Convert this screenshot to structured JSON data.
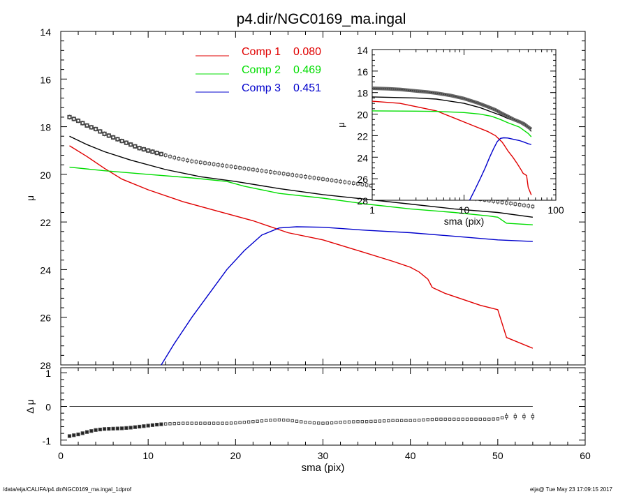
{
  "title": "p4.dir/NGC0169_ma.ingal",
  "footer": {
    "path": "/data/eija/CALIFA/p4.dir/NGC0169_ma.ingal_1dprof",
    "stamp": "eija@  Tue May 23 17:09:15 2017"
  },
  "colors": {
    "comp1": "#e00000",
    "comp2": "#00dd00",
    "comp3": "#0000cc",
    "data": "#555555",
    "total": "#000000"
  },
  "chart_data": [
    {
      "panel": "main",
      "type": "line",
      "xlabel": "",
      "ylabel": "μ",
      "xlim": [
        0,
        60
      ],
      "ylim": [
        28,
        14
      ],
      "y_inverted": true,
      "yticks": [
        14,
        16,
        18,
        20,
        22,
        24,
        26,
        28
      ],
      "legend": {
        "placement": "top-center",
        "entries": [
          {
            "label": "Comp 1",
            "value": "0.080",
            "color": "#e00000"
          },
          {
            "label": "Comp 2",
            "value": "0.469",
            "color": "#00dd00"
          },
          {
            "label": "Comp 3",
            "value": "0.451",
            "color": "#0000cc"
          }
        ]
      },
      "series": [
        {
          "name": "Comp 1",
          "color": "#e00000",
          "x": [
            1,
            3,
            5,
            7,
            10,
            14,
            18,
            22,
            26,
            30,
            34,
            38,
            40,
            41,
            42,
            42.5,
            44,
            46,
            48,
            50,
            51,
            54
          ],
          "y": [
            18.8,
            19.25,
            19.75,
            20.2,
            20.65,
            21.15,
            21.55,
            21.95,
            22.45,
            22.75,
            23.2,
            23.65,
            23.9,
            24.1,
            24.4,
            24.75,
            25.0,
            25.25,
            25.5,
            25.68,
            26.85,
            27.3
          ]
        },
        {
          "name": "Comp 2",
          "color": "#00dd00",
          "x": [
            1,
            5,
            10,
            15,
            19,
            21,
            25,
            30,
            35,
            40,
            45,
            49,
            50,
            51,
            54
          ],
          "y": [
            19.7,
            19.85,
            20.0,
            20.15,
            20.3,
            20.5,
            20.8,
            21.0,
            21.25,
            21.45,
            21.6,
            21.75,
            21.8,
            22.05,
            22.12
          ]
        },
        {
          "name": "Comp 3",
          "color": "#0000cc",
          "x": [
            11.5,
            13,
            15,
            17,
            19,
            21,
            23,
            25,
            27,
            30,
            35,
            40,
            45,
            50,
            54
          ],
          "y": [
            28.0,
            27.1,
            26.0,
            25.0,
            24.0,
            23.2,
            22.55,
            22.25,
            22.2,
            22.22,
            22.35,
            22.45,
            22.6,
            22.75,
            22.82
          ]
        },
        {
          "name": "Total",
          "color": "#000000",
          "x": [
            1,
            3,
            5,
            8,
            12,
            16,
            20,
            25,
            30,
            35,
            40,
            45,
            50,
            54
          ],
          "y": [
            18.4,
            18.75,
            19.05,
            19.4,
            19.8,
            20.1,
            20.3,
            20.6,
            20.85,
            21.05,
            21.25,
            21.45,
            21.6,
            21.8
          ]
        },
        {
          "name": "Data",
          "color": "#555555",
          "marker": "square-errorbar",
          "x": [
            1,
            2,
            3,
            4,
            5,
            6,
            7,
            8,
            9,
            10,
            11,
            12,
            13,
            14,
            15,
            16,
            17,
            18,
            19,
            20,
            21,
            22,
            23,
            24,
            25,
            26,
            27,
            28,
            29,
            30,
            31,
            32,
            33,
            34,
            35,
            36,
            37,
            38,
            39,
            40,
            41,
            42,
            43,
            44,
            45,
            46,
            47,
            48,
            49,
            50,
            51,
            52,
            53,
            54
          ],
          "y": [
            17.6,
            17.75,
            17.95,
            18.1,
            18.3,
            18.45,
            18.6,
            18.75,
            18.9,
            19.0,
            19.1,
            19.2,
            19.3,
            19.38,
            19.45,
            19.5,
            19.55,
            19.6,
            19.65,
            19.7,
            19.75,
            19.8,
            19.85,
            19.9,
            19.95,
            20.0,
            20.05,
            20.1,
            20.15,
            20.2,
            20.25,
            20.3,
            20.35,
            20.4,
            20.45,
            20.5,
            20.55,
            20.6,
            20.65,
            20.7,
            20.75,
            20.78,
            20.82,
            20.86,
            20.9,
            20.95,
            21.0,
            21.05,
            21.1,
            21.15,
            21.2,
            21.25,
            21.3,
            21.35
          ]
        }
      ]
    },
    {
      "panel": "inset",
      "type": "line",
      "xlabel": "sma (pix)",
      "ylabel": "μ",
      "x_scale": "log",
      "xlim": [
        1,
        100
      ],
      "ylim": [
        28,
        14
      ],
      "y_inverted": true,
      "xticks": [
        1,
        10,
        100
      ],
      "yticks": [
        14,
        16,
        18,
        20,
        22,
        24,
        26,
        28
      ],
      "series": [
        {
          "name": "Comp 1",
          "color": "#e00000",
          "x": [
            1,
            2,
            3,
            5,
            8,
            12,
            18,
            22,
            26,
            28,
            30,
            34,
            38,
            42,
            44,
            46,
            48,
            50,
            54
          ],
          "y": [
            18.8,
            19.0,
            19.3,
            19.7,
            20.4,
            21.0,
            21.6,
            22.0,
            22.6,
            23.0,
            23.4,
            24.0,
            24.6,
            25.2,
            25.5,
            25.6,
            25.7,
            26.8,
            27.5
          ]
        },
        {
          "name": "Comp 2",
          "color": "#00dd00",
          "x": [
            1,
            3,
            5,
            10,
            15,
            20,
            25,
            30,
            40,
            50,
            54
          ],
          "y": [
            19.7,
            19.72,
            19.75,
            19.85,
            20.0,
            20.2,
            20.5,
            20.8,
            21.2,
            21.8,
            22.1
          ]
        },
        {
          "name": "Comp 3",
          "color": "#0000cc",
          "x": [
            11.5,
            13,
            15,
            17,
            19,
            21,
            23,
            25,
            27,
            30,
            35,
            40,
            45,
            50,
            54
          ],
          "y": [
            28.0,
            27.1,
            26.0,
            25.0,
            24.0,
            23.2,
            22.55,
            22.25,
            22.2,
            22.22,
            22.35,
            22.45,
            22.6,
            22.75,
            22.82
          ]
        },
        {
          "name": "Total",
          "color": "#000000",
          "x": [
            1,
            3,
            5,
            10,
            15,
            20,
            25,
            30,
            40,
            50,
            54
          ],
          "y": [
            18.4,
            18.5,
            18.6,
            19.0,
            19.4,
            19.8,
            20.1,
            20.4,
            20.8,
            21.3,
            21.6
          ]
        },
        {
          "name": "Data",
          "color": "#555555",
          "x": [
            1,
            1.5,
            2,
            3,
            4,
            5,
            7,
            10,
            14,
            18,
            22,
            26,
            30,
            35,
            40,
            45,
            50,
            54
          ],
          "y": [
            17.6,
            17.65,
            17.7,
            17.85,
            17.95,
            18.05,
            18.25,
            18.55,
            18.95,
            19.3,
            19.6,
            19.95,
            20.2,
            20.5,
            20.7,
            20.9,
            21.2,
            21.4
          ]
        }
      ]
    },
    {
      "panel": "residual",
      "type": "scatter",
      "xlabel": "sma (pix)",
      "ylabel": "Δ μ",
      "xlim": [
        0,
        60
      ],
      "ylim": [
        -1.15,
        1.15
      ],
      "xticks": [
        0,
        10,
        20,
        30,
        40,
        50,
        60
      ],
      "yticks": [
        1,
        0,
        -1
      ],
      "zero_line": true,
      "series": [
        {
          "name": "Data - Model",
          "color": "#555555",
          "x": [
            1,
            2,
            3,
            4,
            5,
            6,
            7,
            8,
            9,
            10,
            11,
            12,
            13,
            14,
            15,
            16,
            17,
            18,
            19,
            20,
            21,
            22,
            23,
            24,
            25,
            26,
            27,
            28,
            29,
            30,
            31,
            32,
            33,
            34,
            35,
            36,
            37,
            38,
            39,
            40,
            41,
            42,
            43,
            44,
            45,
            46,
            47,
            48,
            49,
            50,
            51,
            52,
            53,
            54
          ],
          "y": [
            -0.88,
            -0.83,
            -0.76,
            -0.7,
            -0.67,
            -0.66,
            -0.65,
            -0.63,
            -0.6,
            -0.57,
            -0.54,
            -0.52,
            -0.51,
            -0.5,
            -0.5,
            -0.5,
            -0.5,
            -0.5,
            -0.5,
            -0.49,
            -0.47,
            -0.45,
            -0.43,
            -0.41,
            -0.4,
            -0.41,
            -0.44,
            -0.47,
            -0.49,
            -0.5,
            -0.49,
            -0.47,
            -0.46,
            -0.45,
            -0.45,
            -0.44,
            -0.43,
            -0.42,
            -0.42,
            -0.42,
            -0.41,
            -0.39,
            -0.38,
            -0.38,
            -0.38,
            -0.38,
            -0.38,
            -0.38,
            -0.38,
            -0.37,
            -0.3,
            -0.3,
            -0.3,
            -0.3
          ]
        }
      ]
    }
  ]
}
